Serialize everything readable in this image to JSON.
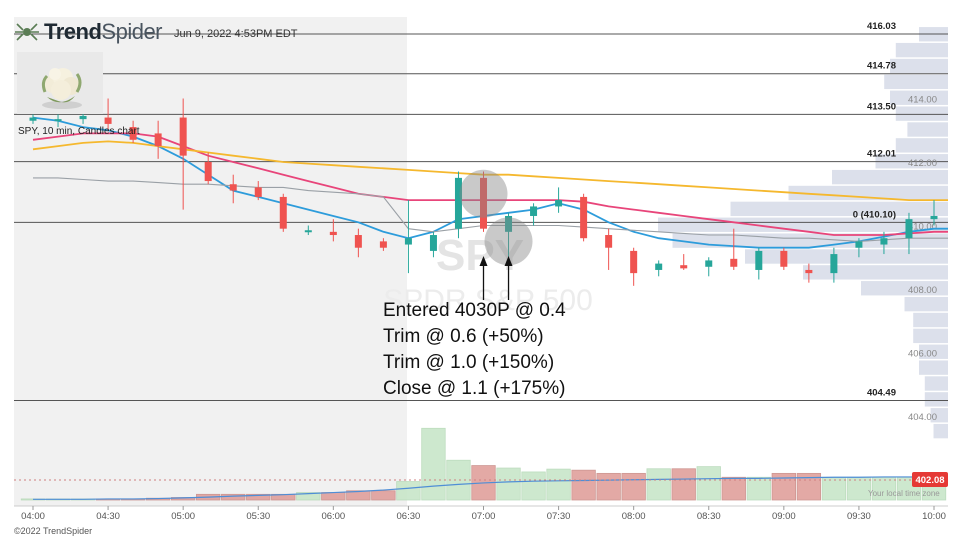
{
  "brand": {
    "prefix": "Trend",
    "suffix": "Spider",
    "logo_icon": "spider-logo-icon",
    "timestamp": "Jun 9, 2022 4:53PM EDT"
  },
  "thumbnail": {
    "icon": "cauliflower-image"
  },
  "chart_title": "SPY, 10 min, Candles chart",
  "watermark": {
    "ticker": "SPY",
    "name": "SPDR S&P 500"
  },
  "annotations": [
    "Entered 4030P @ 0.4",
    "Trim @ 0.6 (+50%)",
    "Trim @ 1.0 (+150%)",
    "Close @ 1.1 (+175%)"
  ],
  "footer": {
    "copyright": "©2022 TrendSpider",
    "local_time": "Your local time zone"
  },
  "colors": {
    "up": "#26a69a",
    "down": "#ef5350",
    "ema_blue": "#2d9cdb",
    "ema_pink": "#e8457a",
    "ema_orange": "#f5b82e",
    "sma_gray": "#9aa0a6",
    "volume_up": "#c8e6c9",
    "volume_down": "#e0a09c",
    "volume_profile": "#d6dbe8",
    "price_tag": "#e53935"
  },
  "chart_data": {
    "type": "candlestick",
    "symbol": "SPY",
    "interval": "10 min",
    "y_range": [
      403.2,
      417.2
    ],
    "x_range": [
      "04:00",
      "10:00"
    ],
    "x_ticks": [
      "04:00",
      "04:30",
      "05:00",
      "05:30",
      "06:00",
      "06:30",
      "07:00",
      "07:30",
      "08:00",
      "08:30",
      "09:00",
      "09:30",
      "10:00"
    ],
    "y_ticks": [
      404.0,
      406.0,
      408.0,
      410.0,
      412.0,
      414.0
    ],
    "y_tick_labels": [
      "404.00",
      "406.00",
      "408.00",
      "410.00",
      "412.00",
      "414.00"
    ],
    "levels": [
      {
        "price": 416.03,
        "label": "416.03"
      },
      {
        "price": 414.78,
        "label": "414.78"
      },
      {
        "price": 413.5,
        "label": "413.50"
      },
      {
        "price": 412.01,
        "label": "412.01"
      },
      {
        "price": 410.1,
        "label": "0 (410.10)"
      },
      {
        "price": 404.49,
        "label": "404.49"
      }
    ],
    "current_price": "402.08",
    "candles": [
      {
        "t": "04:00",
        "o": 413.3,
        "h": 413.5,
        "l": 413.2,
        "c": 413.4
      },
      {
        "t": "04:10",
        "o": 413.3,
        "h": 413.5,
        "l": 413.1,
        "c": 413.35
      },
      {
        "t": "04:20",
        "o": 413.35,
        "h": 413.6,
        "l": 413.2,
        "c": 413.45
      },
      {
        "t": "04:30",
        "o": 413.4,
        "h": 414.0,
        "l": 413.0,
        "c": 413.2
      },
      {
        "t": "04:40",
        "o": 413.1,
        "h": 413.3,
        "l": 412.6,
        "c": 412.7
      },
      {
        "t": "04:50",
        "o": 412.9,
        "h": 413.3,
        "l": 412.1,
        "c": 412.5
      },
      {
        "t": "05:00",
        "o": 413.4,
        "h": 414.0,
        "l": 410.5,
        "c": 412.2
      },
      {
        "t": "05:10",
        "o": 412.0,
        "h": 412.3,
        "l": 411.3,
        "c": 411.4
      },
      {
        "t": "05:20",
        "o": 411.3,
        "h": 411.6,
        "l": 410.7,
        "c": 411.1
      },
      {
        "t": "05:30",
        "o": 411.2,
        "h": 411.4,
        "l": 410.8,
        "c": 410.9
      },
      {
        "t": "05:40",
        "o": 410.9,
        "h": 411.0,
        "l": 409.8,
        "c": 409.9
      },
      {
        "t": "05:50",
        "o": 409.85,
        "h": 410.0,
        "l": 409.7,
        "c": 409.85
      },
      {
        "t": "06:00",
        "o": 409.8,
        "h": 410.2,
        "l": 409.5,
        "c": 409.7
      },
      {
        "t": "06:10",
        "o": 409.7,
        "h": 409.9,
        "l": 409.0,
        "c": 409.3
      },
      {
        "t": "06:20",
        "o": 409.5,
        "h": 409.6,
        "l": 409.2,
        "c": 409.3
      },
      {
        "t": "06:30",
        "o": 409.4,
        "h": 410.8,
        "l": 408.5,
        "c": 409.6
      },
      {
        "t": "06:40",
        "o": 409.2,
        "h": 409.8,
        "l": 409.0,
        "c": 409.7
      },
      {
        "t": "06:50",
        "o": 409.9,
        "h": 411.7,
        "l": 409.6,
        "c": 411.5
      },
      {
        "t": "07:00",
        "o": 411.5,
        "h": 411.7,
        "l": 409.8,
        "c": 409.9
      },
      {
        "t": "07:10",
        "o": 409.8,
        "h": 410.4,
        "l": 409.0,
        "c": 410.3
      },
      {
        "t": "07:20",
        "o": 410.3,
        "h": 410.7,
        "l": 410.0,
        "c": 410.6
      },
      {
        "t": "07:30",
        "o": 410.6,
        "h": 411.2,
        "l": 410.4,
        "c": 410.8
      },
      {
        "t": "07:40",
        "o": 410.9,
        "h": 411.0,
        "l": 409.5,
        "c": 409.6
      },
      {
        "t": "07:50",
        "o": 409.7,
        "h": 409.9,
        "l": 408.6,
        "c": 409.3
      },
      {
        "t": "08:00",
        "o": 409.2,
        "h": 409.3,
        "l": 408.1,
        "c": 408.5
      },
      {
        "t": "08:10",
        "o": 408.6,
        "h": 408.9,
        "l": 408.4,
        "c": 408.8
      },
      {
        "t": "08:20",
        "o": 408.75,
        "h": 409.1,
        "l": 408.6,
        "c": 408.65
      },
      {
        "t": "08:30",
        "o": 408.7,
        "h": 409.0,
        "l": 408.4,
        "c": 408.9
      },
      {
        "t": "08:40",
        "o": 408.95,
        "h": 409.9,
        "l": 408.6,
        "c": 408.7
      },
      {
        "t": "08:50",
        "o": 408.6,
        "h": 409.3,
        "l": 408.3,
        "c": 409.2
      },
      {
        "t": "09:00",
        "o": 409.2,
        "h": 409.3,
        "l": 408.6,
        "c": 408.7
      },
      {
        "t": "09:10",
        "o": 408.6,
        "h": 408.8,
        "l": 408.2,
        "c": 408.5
      },
      {
        "t": "09:20",
        "o": 408.5,
        "h": 409.3,
        "l": 408.2,
        "c": 409.1
      },
      {
        "t": "09:30",
        "o": 409.3,
        "h": 409.6,
        "l": 409.0,
        "c": 409.5
      },
      {
        "t": "09:40",
        "o": 409.4,
        "h": 409.8,
        "l": 409.1,
        "c": 409.6
      },
      {
        "t": "09:50",
        "o": 409.6,
        "h": 410.4,
        "l": 409.1,
        "c": 410.2
      },
      {
        "t": "10:00",
        "o": 410.2,
        "h": 410.8,
        "l": 410.0,
        "c": 410.3
      }
    ],
    "volume": [
      0.3,
      0.3,
      0.3,
      0.3,
      0.3,
      0.5,
      0.7,
      1.6,
      1.6,
      1.6,
      1.6,
      2.1,
      2.1,
      2.6,
      2.6,
      5.2,
      20.2,
      11.2,
      9.7,
      9.0,
      7.9,
      8.7,
      8.4,
      7.5,
      7.5,
      8.8,
      8.8,
      9.4,
      6.4,
      6.4,
      7.5,
      7.5,
      6.4,
      6.4,
      6.4,
      6.4,
      6.4
    ],
    "volume_avg": [
      0.2,
      0.2,
      0.2,
      0.3,
      0.3,
      0.4,
      0.6,
      0.8,
      1.1,
      1.3,
      1.5,
      1.8,
      2.1,
      2.4,
      2.8,
      3.3,
      3.9,
      4.4,
      4.8,
      5.1,
      5.3,
      5.4,
      5.5,
      5.6,
      5.7,
      5.8,
      5.9,
      6.0,
      6.1,
      6.1,
      6.2,
      6.3,
      6.4,
      6.4,
      6.5,
      6.5,
      6.5
    ],
    "indicators": [
      {
        "color": "blue",
        "values": [
          413.4,
          413.3,
          413.1,
          413.0,
          412.8,
          412.5,
          412.1,
          411.6,
          411.1,
          410.9,
          410.7,
          410.5,
          410.3,
          410.1,
          409.8,
          409.6,
          409.8,
          410.2,
          410.3,
          410.4,
          410.5,
          410.7,
          410.5,
          410.1,
          409.8,
          409.6,
          409.5,
          409.4,
          409.35,
          409.3,
          409.3,
          409.3,
          409.4,
          409.5,
          409.65,
          409.8,
          409.9
        ]
      },
      {
        "color": "pink",
        "values": [
          412.7,
          412.8,
          412.9,
          412.9,
          412.9,
          412.8,
          412.5,
          412.2,
          412.0,
          411.8,
          411.6,
          411.4,
          411.2,
          411.0,
          410.9,
          410.8,
          410.8,
          410.8,
          410.8,
          410.8,
          410.8,
          410.8,
          410.75,
          410.6,
          410.5,
          410.4,
          410.3,
          410.2,
          410.1,
          410.0,
          409.9,
          409.8,
          409.7,
          409.7,
          409.7,
          409.75,
          409.8
        ]
      },
      {
        "color": "orange",
        "values": [
          412.4,
          412.5,
          412.6,
          412.65,
          412.6,
          412.5,
          412.4,
          412.3,
          412.2,
          412.1,
          412.0,
          411.95,
          411.9,
          411.85,
          411.8,
          411.75,
          411.7,
          411.65,
          411.6,
          411.6,
          411.55,
          411.5,
          411.45,
          411.4,
          411.35,
          411.3,
          411.25,
          411.2,
          411.15,
          411.1,
          411.05,
          411.0,
          410.95,
          410.9,
          410.85,
          410.8,
          410.8
        ]
      },
      {
        "color": "gray",
        "values": [
          411.5,
          411.5,
          411.45,
          411.4,
          411.4,
          411.35,
          411.3,
          411.3,
          411.25,
          411.2,
          411.2,
          411.1,
          411.05,
          411.0,
          410.9,
          409.9,
          409.8,
          409.9,
          410.0,
          410.0,
          410.0,
          410.0,
          409.95,
          409.9,
          409.85,
          409.8,
          409.75,
          409.7,
          409.7,
          409.65,
          409.6,
          409.6,
          409.55,
          409.5,
          409.55,
          409.6,
          409.6
        ]
      }
    ],
    "trade_markers": [
      {
        "t": "07:00"
      },
      {
        "t": "07:10"
      }
    ],
    "highlight_circles": [
      {
        "t": "07:00",
        "price": 411.0
      },
      {
        "t": "07:10",
        "price": 409.5
      }
    ],
    "volume_profile": [
      {
        "price": 403.5,
        "size": 0.05
      },
      {
        "price": 404.0,
        "size": 0.06
      },
      {
        "price": 404.5,
        "size": 0.08
      },
      {
        "price": 405.0,
        "size": 0.08
      },
      {
        "price": 405.5,
        "size": 0.1
      },
      {
        "price": 406.0,
        "size": 0.1
      },
      {
        "price": 406.5,
        "size": 0.12
      },
      {
        "price": 407.0,
        "size": 0.12
      },
      {
        "price": 407.5,
        "size": 0.15
      },
      {
        "price": 408.0,
        "size": 0.3
      },
      {
        "price": 408.5,
        "size": 0.5
      },
      {
        "price": 409.0,
        "size": 0.7
      },
      {
        "price": 409.5,
        "size": 0.95
      },
      {
        "price": 410.0,
        "size": 1.0
      },
      {
        "price": 410.5,
        "size": 0.75
      },
      {
        "price": 411.0,
        "size": 0.55
      },
      {
        "price": 411.5,
        "size": 0.4
      },
      {
        "price": 412.0,
        "size": 0.25
      },
      {
        "price": 412.5,
        "size": 0.18
      },
      {
        "price": 413.0,
        "size": 0.14
      },
      {
        "price": 413.5,
        "size": 0.18
      },
      {
        "price": 414.0,
        "size": 0.2
      },
      {
        "price": 414.5,
        "size": 0.22
      },
      {
        "price": 415.0,
        "size": 0.2
      },
      {
        "price": 415.5,
        "size": 0.18
      },
      {
        "price": 416.0,
        "size": 0.1
      }
    ]
  }
}
